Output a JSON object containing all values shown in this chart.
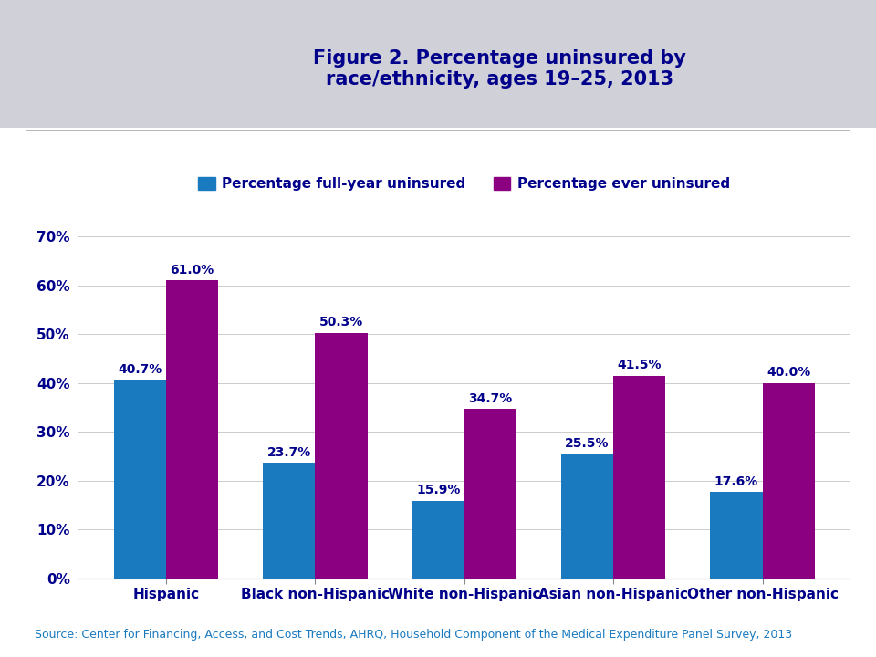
{
  "title": "Figure 2. Percentage uninsured by\nrace/ethnicity, ages 19–25, 2013",
  "categories": [
    "Hispanic",
    "Black non-Hispanic",
    "White non-Hispanic",
    "Asian non-Hispanic",
    "Other non-Hispanic"
  ],
  "full_year": [
    40.7,
    23.7,
    15.9,
    25.5,
    17.6
  ],
  "ever": [
    61.0,
    50.3,
    34.7,
    41.5,
    40.0
  ],
  "color_full": "#1a7abf",
  "color_ever": "#8B0080",
  "title_color": "#00008B",
  "label_color": "#00008B",
  "axis_label_color": "#00008B",
  "tick_label_color": "#00008B",
  "source_text": "Source: Center for Financing, Access, and Cost Trends, AHRQ, Household Component of the Medical Expenditure Panel Survey, 2013",
  "source_color": "#1a7abf",
  "header_bg": "#D0D0D8",
  "plot_bg": "#FFFFFF",
  "fig_bg": "#D0D0D8",
  "ylim": [
    0,
    70
  ],
  "yticks": [
    0,
    10,
    20,
    30,
    40,
    50,
    60,
    70
  ],
  "bar_width": 0.35,
  "legend_labels": [
    "Percentage full-year uninsured",
    "Percentage ever uninsured"
  ]
}
